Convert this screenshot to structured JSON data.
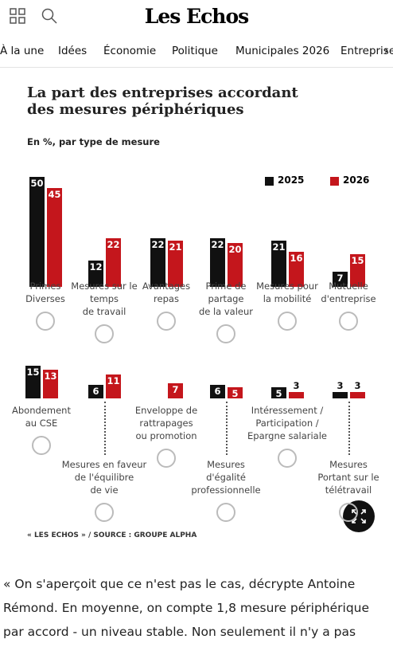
{
  "header": {
    "logo": "Les Echos"
  },
  "nav": [
    "À la une",
    "Idées",
    "Économie",
    "Politique",
    "Municipales 2026",
    "Entreprise"
  ],
  "chart_data": {
    "type": "bar",
    "title": "La part des entreprises accordant\ndes mesures périphériques",
    "subtitle": "En %, par type de mesure",
    "categories": [
      "Primes\nDiverses",
      "Mesures sur le\ntemps\nde travail",
      "Avantages\nrepas",
      "Prime de\npartage\nde la valeur",
      "Mesures pour\nla mobilité",
      "Mutuelle\nd'entreprise",
      "Abondement\nau CSE",
      "Mesures en faveur\nde l'équilibre\nde vie",
      "Enveloppe de\nrattrapages\nou promotion",
      "Mesures\nd'égalité\nprofessionnelle",
      "Intéressement /\nParticipation /\nEpargne salariale",
      "Mesures\nPortant sur le\ntélétravail"
    ],
    "series": [
      {
        "name": "2025",
        "color": "#111111",
        "values": [
          50,
          12,
          22,
          22,
          21,
          7,
          15,
          6,
          null,
          6,
          5,
          3
        ]
      },
      {
        "name": "2026",
        "color": "#c4161c",
        "values": [
          45,
          22,
          21,
          20,
          16,
          15,
          13,
          11,
          7,
          5,
          3,
          3
        ]
      }
    ],
    "source": "« LES ECHOS » / SOURCE : GROUPE ALPHA"
  },
  "paragraph": "« On s'aperçoit que ce n'est pas le cas, décrypte Antoine Rémond. En moyenne, on compte 1,8 mesure périphérique par accord - un niveau stable. Non seulement il n'y a pas"
}
